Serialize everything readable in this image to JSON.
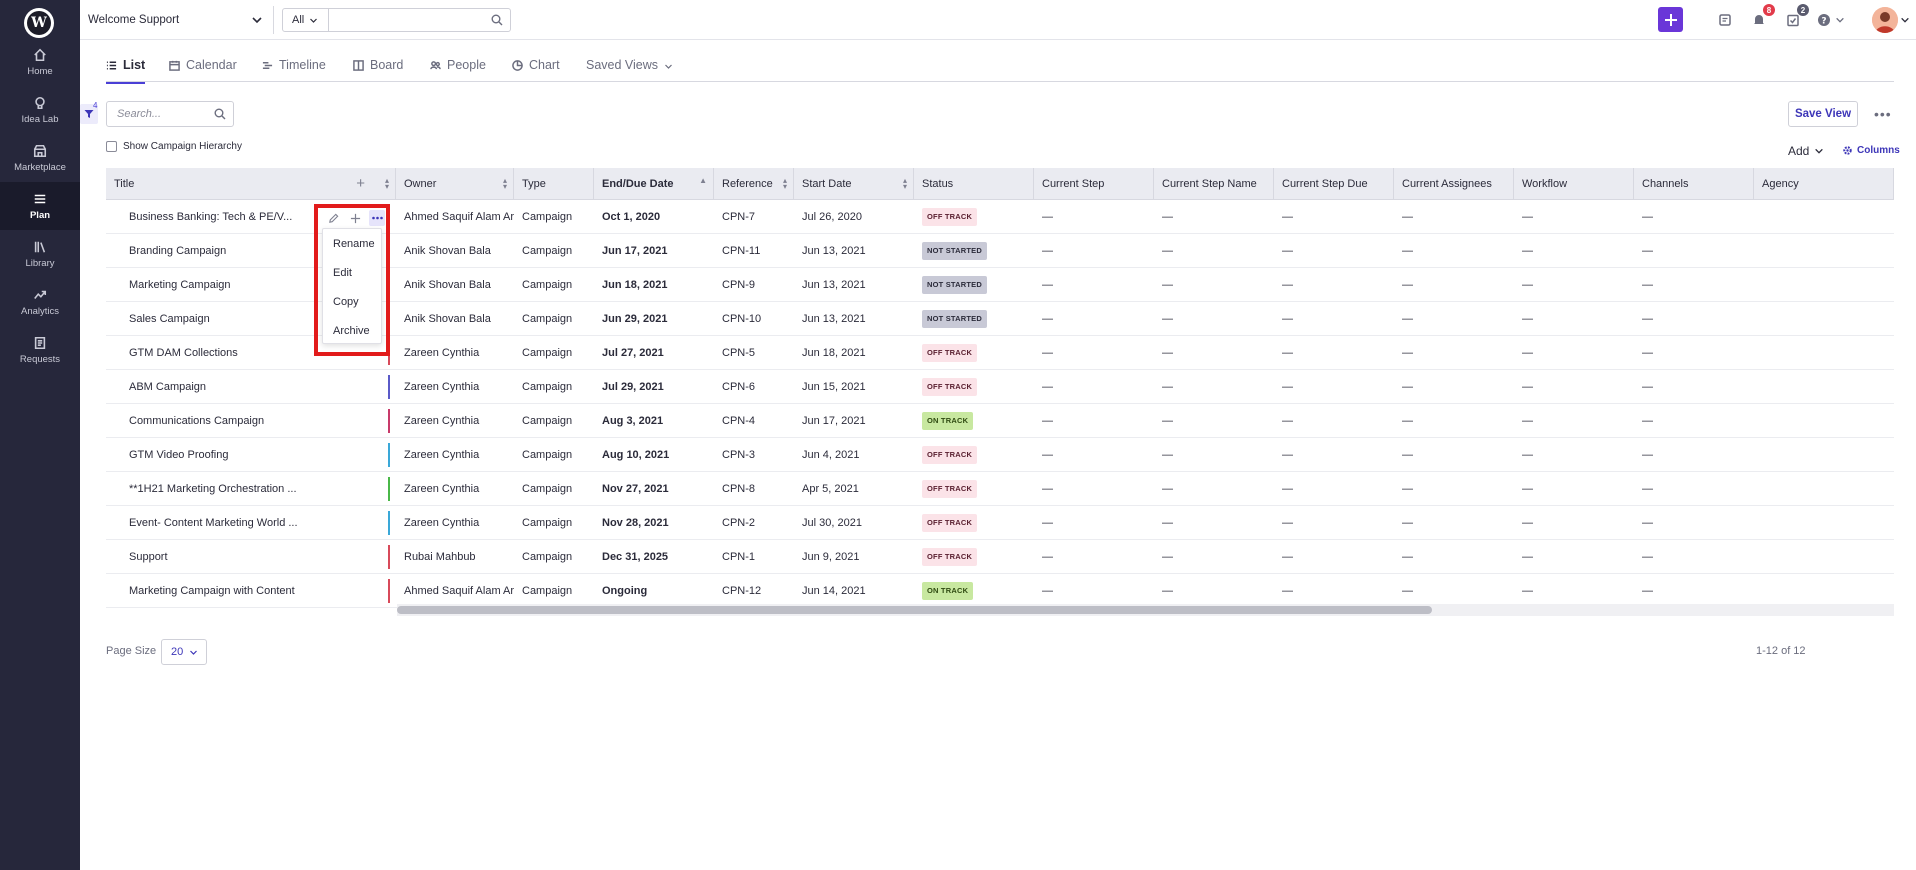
{
  "sidebar": {
    "logo": "W",
    "items": [
      {
        "label": "Home",
        "icon": "home-icon"
      },
      {
        "label": "Idea Lab",
        "icon": "lightbulb-icon"
      },
      {
        "label": "Marketplace",
        "icon": "store-icon"
      },
      {
        "label": "Plan",
        "icon": "list-icon",
        "active": true
      },
      {
        "label": "Library",
        "icon": "library-icon"
      },
      {
        "label": "Analytics",
        "icon": "trend-icon"
      },
      {
        "label": "Requests",
        "icon": "document-icon"
      }
    ]
  },
  "topbar": {
    "workspace": "Welcome Support",
    "scope": "All",
    "search_value": "",
    "notifications_count": "8",
    "tasks_count": "2",
    "accent_color": "#6a36d8"
  },
  "tabs": [
    {
      "label": "List",
      "icon": "list-icon",
      "active": true
    },
    {
      "label": "Calendar",
      "icon": "calendar-icon"
    },
    {
      "label": "Timeline",
      "icon": "timeline-icon"
    },
    {
      "label": "Board",
      "icon": "board-icon"
    },
    {
      "label": "People",
      "icon": "people-icon"
    },
    {
      "label": "Chart",
      "icon": "pie-chart-icon"
    },
    {
      "label": "Saved Views",
      "icon": "chevron-down-icon"
    }
  ],
  "toolbar": {
    "filter_count": "4",
    "search_placeholder": "Search...",
    "save_view": "Save View",
    "hierarchy_label": "Show Campaign Hierarchy",
    "add_label": "Add",
    "columns_label": "Columns"
  },
  "table": {
    "columns": [
      "Title",
      "Owner",
      "Type",
      "End/Due Date",
      "Reference",
      "Start Date",
      "Status",
      "Current Step",
      "Current Step Name",
      "Current Step Due",
      "Current Assignees",
      "Workflow",
      "Channels",
      "Agency"
    ],
    "rows": [
      {
        "title": "Business Banking: Tech & PE/V...",
        "owner": "Ahmed Saquif Alam Ar",
        "type": "Campaign",
        "end": "Oct 1, 2020",
        "ref": "CPN-7",
        "start": "Jul 26, 2020",
        "status": "OFF TRACK",
        "s": "off",
        "bar": ""
      },
      {
        "title": "Branding Campaign",
        "owner": "Anik Shovan Bala",
        "type": "Campaign",
        "end": "Jun 17, 2021",
        "ref": "CPN-11",
        "start": "Jun 13, 2021",
        "status": "NOT STARTED",
        "s": "not",
        "bar": ""
      },
      {
        "title": "Marketing Campaign",
        "owner": "Anik Shovan Bala",
        "type": "Campaign",
        "end": "Jun 18, 2021",
        "ref": "CPN-9",
        "start": "Jun 13, 2021",
        "status": "NOT STARTED",
        "s": "not",
        "bar": ""
      },
      {
        "title": "Sales Campaign",
        "owner": "Anik Shovan Bala",
        "type": "Campaign",
        "end": "Jun 29, 2021",
        "ref": "CPN-10",
        "start": "Jun 13, 2021",
        "status": "NOT STARTED",
        "s": "not",
        "bar": ""
      },
      {
        "title": "GTM DAM Collections",
        "owner": "Zareen Cynthia",
        "type": "Campaign",
        "end": "Jul 27, 2021",
        "ref": "CPN-5",
        "start": "Jun 18, 2021",
        "status": "OFF TRACK",
        "s": "off",
        "bar": "#d84a5a"
      },
      {
        "title": "ABM Campaign",
        "owner": "Zareen Cynthia",
        "type": "Campaign",
        "end": "Jul 29, 2021",
        "ref": "CPN-6",
        "start": "Jun 15, 2021",
        "status": "OFF TRACK",
        "s": "off",
        "bar": "#5a5ac8"
      },
      {
        "title": "Communications Campaign",
        "owner": "Zareen Cynthia",
        "type": "Campaign",
        "end": "Aug 3, 2021",
        "ref": "CPN-4",
        "start": "Jun 17, 2021",
        "status": "ON TRACK",
        "s": "on",
        "bar": "#c83a6a"
      },
      {
        "title": "GTM Video Proofing",
        "owner": "Zareen Cynthia",
        "type": "Campaign",
        "end": "Aug 10, 2021",
        "ref": "CPN-3",
        "start": "Jun 4, 2021",
        "status": "OFF TRACK",
        "s": "off",
        "bar": "#3aa8d8"
      },
      {
        "title": "**1H21 Marketing Orchestration ...",
        "owner": "Zareen Cynthia",
        "type": "Campaign",
        "end": "Nov 27, 2021",
        "ref": "CPN-8",
        "start": "Apr 5, 2021",
        "status": "OFF TRACK",
        "s": "off",
        "bar": "#4ab848"
      },
      {
        "title": "Event- Content Marketing World ...",
        "owner": "Zareen Cynthia",
        "type": "Campaign",
        "end": "Nov 28, 2021",
        "ref": "CPN-2",
        "start": "Jul 30, 2021",
        "status": "OFF TRACK",
        "s": "off",
        "bar": "#3aa8d8"
      },
      {
        "title": "Support",
        "owner": "Rubai Mahbub",
        "type": "Campaign",
        "end": "Dec 31, 2025",
        "ref": "CPN-1",
        "start": "Jun 9, 2021",
        "status": "OFF TRACK",
        "s": "off",
        "bar": "#d84a5a"
      },
      {
        "title": "Marketing Campaign with Content",
        "owner": "Ahmed Saquif Alam Ar",
        "type": "Campaign",
        "end": "Ongoing",
        "ref": "CPN-12",
        "start": "Jun 14, 2021",
        "status": "ON TRACK",
        "s": "on",
        "bar": "#d84a5a"
      }
    ],
    "empty_value": "—"
  },
  "row_menu": [
    "Rename",
    "Edit",
    "Copy",
    "Archive"
  ],
  "pager": {
    "page_size_label": "Page Size",
    "page_size": "20",
    "count_text": "1-12 of 12"
  }
}
